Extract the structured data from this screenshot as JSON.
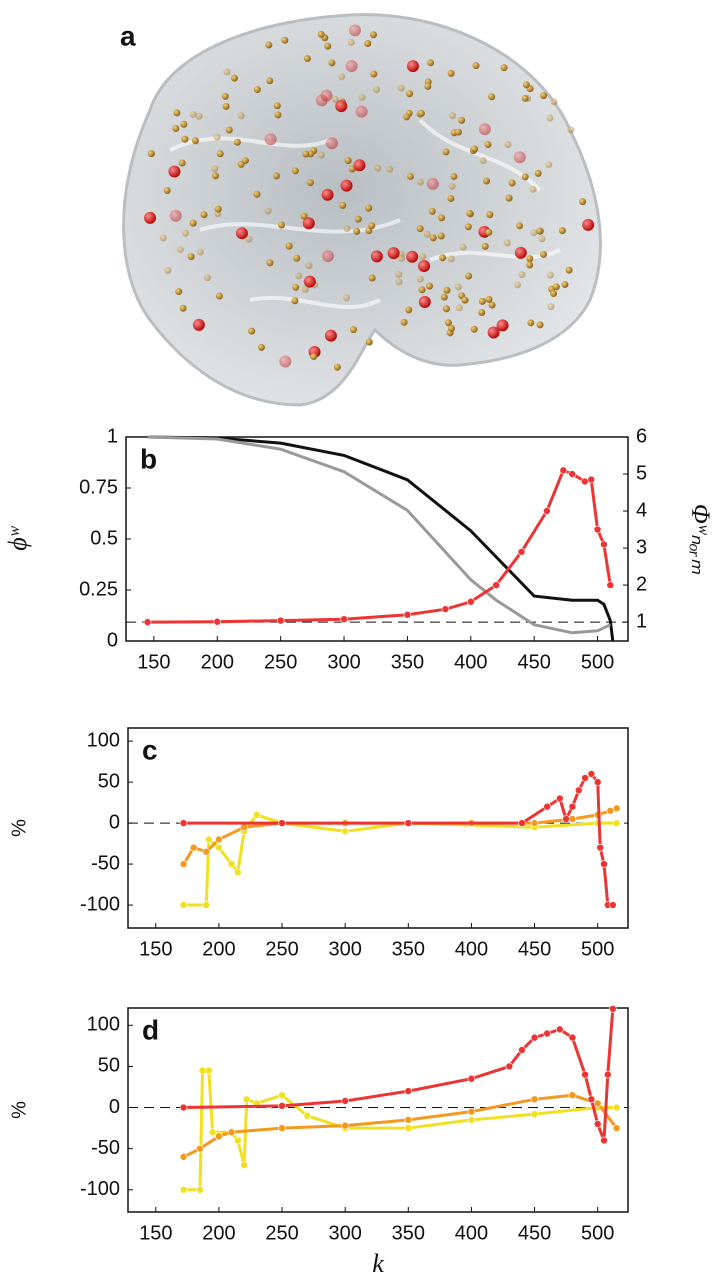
{
  "panel_a": {
    "label": "a"
  },
  "chart_data": [
    {
      "type": "line",
      "panel_label": "b",
      "ylabel": "ϕʷ",
      "y2label": "Φʷₙₒᵣₘ",
      "xlim": [
        128,
        524
      ],
      "xticks": [
        150,
        200,
        250,
        300,
        350,
        400,
        450,
        500
      ],
      "ylim": [
        0,
        1
      ],
      "yticks": [
        0,
        0.25,
        0.5,
        0.75,
        1
      ],
      "y2lim": [
        0.49,
        6
      ],
      "y2ticks": [
        1,
        2,
        3,
        4,
        5,
        6
      ],
      "reference_line": {
        "value": 1,
        "axis": "y2"
      },
      "series": [
        {
          "color": "#111111",
          "marker": false,
          "x": [
            145,
            200,
            250,
            300,
            350,
            400,
            450,
            480,
            500,
            505,
            510,
            512
          ],
          "values": [
            1,
            0.995,
            0.97,
            0.91,
            0.79,
            0.54,
            0.22,
            0.2,
            0.2,
            0.18,
            0.1,
            0
          ]
        },
        {
          "color": "#999999",
          "marker": false,
          "x": [
            145,
            200,
            250,
            300,
            350,
            400,
            420,
            450,
            480,
            500,
            510
          ],
          "values": [
            1,
            0.99,
            0.94,
            0.83,
            0.64,
            0.3,
            0.2,
            0.08,
            0.04,
            0.05,
            0.08
          ]
        },
        {
          "color": "#ee3333",
          "marker": true,
          "axis": "y2",
          "x": [
            145,
            200,
            250,
            300,
            350,
            380,
            400,
            420,
            440,
            460,
            473,
            480,
            490,
            495,
            500,
            505,
            510
          ],
          "values": [
            1,
            1.01,
            1.04,
            1.08,
            1.2,
            1.35,
            1.55,
            2,
            2.9,
            4,
            5.1,
            5,
            4.8,
            4.85,
            3.5,
            3.1,
            2
          ]
        }
      ]
    },
    {
      "type": "line",
      "panel_label": "c",
      "ylabel": "%",
      "xlim": [
        128,
        524
      ],
      "xticks": [
        150,
        200,
        250,
        300,
        350,
        400,
        450,
        500
      ],
      "ylim": [
        -128,
        116
      ],
      "yticks": [
        -100,
        -50,
        0,
        50,
        100
      ],
      "reference_line": {
        "value": 0,
        "axis": "y"
      },
      "series": [
        {
          "color": "#f0e020",
          "marker": true,
          "x": [
            172,
            190,
            192,
            200,
            210,
            215,
            220,
            230,
            250,
            300,
            350,
            450,
            500,
            515
          ],
          "values": [
            -100,
            -100,
            -20,
            -30,
            -50,
            -60,
            -10,
            10,
            0,
            -10,
            0,
            -5,
            0,
            0
          ]
        },
        {
          "color": "#f39a1e",
          "marker": true,
          "x": [
            172,
            180,
            190,
            200,
            220,
            250,
            300,
            400,
            450,
            480,
            500,
            510,
            515
          ],
          "values": [
            -50,
            -30,
            -35,
            -20,
            -5,
            0,
            0,
            0,
            0,
            5,
            10,
            15,
            18
          ]
        },
        {
          "color": "#ee3333",
          "marker": true,
          "x": [
            172,
            250,
            350,
            440,
            460,
            470,
            475,
            480,
            485,
            490,
            495,
            500,
            502,
            505,
            508,
            512
          ],
          "values": [
            0,
            0,
            0,
            0,
            20,
            30,
            5,
            20,
            40,
            55,
            60,
            50,
            -30,
            -50,
            -100,
            -100
          ]
        }
      ]
    },
    {
      "type": "line",
      "panel_label": "d",
      "ylabel": "%",
      "xlabel": "k",
      "xlim": [
        128,
        524
      ],
      "xticks": [
        150,
        200,
        250,
        300,
        350,
        400,
        450,
        500
      ],
      "ylim": [
        -127,
        121
      ],
      "yticks": [
        -100,
        -50,
        0,
        50,
        100
      ],
      "reference_line": {
        "value": 0,
        "axis": "y"
      },
      "series": [
        {
          "color": "#f0e020",
          "marker": true,
          "x": [
            172,
            185,
            187,
            192,
            195,
            210,
            215,
            220,
            222,
            230,
            250,
            270,
            300,
            350,
            400,
            450,
            500,
            515
          ],
          "values": [
            -100,
            -100,
            45,
            45,
            -30,
            -30,
            -40,
            -70,
            10,
            5,
            15,
            -10,
            -25,
            -25,
            -15,
            -8,
            0,
            0
          ]
        },
        {
          "color": "#f39a1e",
          "marker": true,
          "x": [
            172,
            185,
            200,
            210,
            250,
            300,
            350,
            400,
            450,
            480,
            500,
            515
          ],
          "values": [
            -60,
            -50,
            -35,
            -30,
            -25,
            -22,
            -15,
            -5,
            10,
            15,
            5,
            -25
          ]
        },
        {
          "color": "#ee3333",
          "marker": true,
          "x": [
            172,
            250,
            300,
            350,
            400,
            430,
            440,
            450,
            460,
            470,
            480,
            490,
            495,
            500,
            505,
            508,
            512
          ],
          "values": [
            0,
            2,
            8,
            20,
            35,
            50,
            70,
            85,
            90,
            95,
            85,
            40,
            10,
            -20,
            -40,
            40,
            120
          ]
        }
      ]
    }
  ]
}
